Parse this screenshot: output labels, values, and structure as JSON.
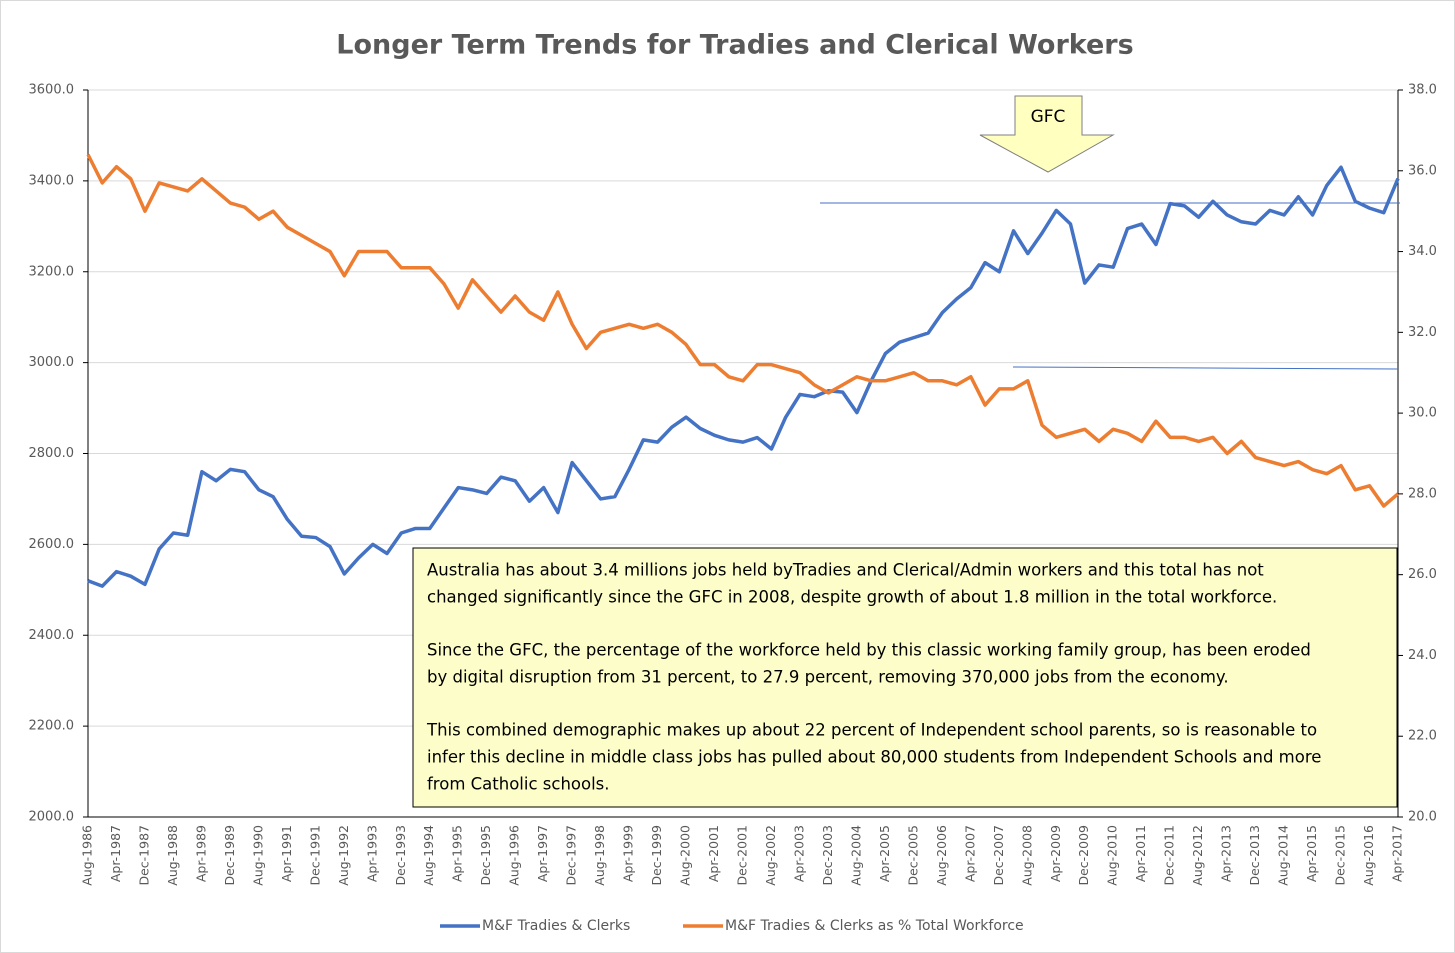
{
  "chart_data": {
    "type": "line",
    "title": "Longer Term Trends for Tradies and Clerical Workers",
    "categories": [
      "Aug-1986",
      null,
      "Apr-1987",
      null,
      "Dec-1987",
      null,
      "Aug-1988",
      null,
      "Apr-1989",
      null,
      "Dec-1989",
      null,
      "Aug-1990",
      null,
      "Apr-1991",
      null,
      "Dec-1991",
      null,
      "Aug-1992",
      null,
      "Apr-1993",
      null,
      "Dec-1993",
      null,
      "Aug-1994",
      null,
      "Apr-1995",
      null,
      "Dec-1995",
      null,
      "Aug-1996",
      null,
      "Apr-1997",
      null,
      "Dec-1997",
      null,
      "Aug-1998",
      null,
      "Apr-1999",
      null,
      "Dec-1999",
      null,
      "Aug-2000",
      null,
      "Apr-2001",
      null,
      "Dec-2001",
      null,
      "Aug-2002",
      null,
      "Apr-2003",
      null,
      "Dec-2003",
      null,
      "Aug-2004",
      null,
      "Apr-2005",
      null,
      "Dec-2005",
      null,
      "Aug-2006",
      null,
      "Apr-2007",
      null,
      "Dec-2007",
      null,
      "Aug-2008",
      null,
      "Apr-2009",
      null,
      "Dec-2009",
      null,
      "Aug-2010",
      null,
      "Apr-2011",
      null,
      "Dec-2011",
      null,
      "Aug-2012",
      null,
      "Apr-2013",
      null,
      "Dec-2013",
      null,
      "Aug-2014",
      null,
      "Apr-2015",
      null,
      "Dec-2015",
      null,
      "Aug-2016",
      null,
      "Apr-2017"
    ],
    "series": [
      {
        "name": "M&F Tradies & Clerks",
        "color": "#4472c4",
        "values": [
          2520,
          2508,
          2540,
          2530,
          2512,
          2590,
          2625,
          2620,
          2760,
          2740,
          2765,
          2760,
          2720,
          2705,
          2655,
          2618,
          2615,
          2595,
          2535,
          2570,
          2600,
          2580,
          2625,
          2635,
          2635,
          2680,
          2725,
          2720,
          2712,
          2748,
          2740,
          2695,
          2725,
          2670,
          2780,
          2740,
          2700,
          2705,
          2765,
          2830,
          2825,
          2858,
          2880,
          2855,
          2840,
          2830,
          2825,
          2835,
          2810,
          2880,
          2930,
          2925,
          2938,
          2935,
          2890,
          2960,
          3020,
          3045,
          3055,
          3065,
          3110,
          3140,
          3165,
          3220,
          3200,
          3290,
          3240,
          3285,
          3335,
          3305,
          3175,
          3215,
          3210,
          3295,
          3305,
          3260,
          3350,
          3345,
          3320,
          3355,
          3325,
          3310,
          3305,
          3335,
          3325,
          3365,
          3325,
          3390,
          3430,
          3355,
          3340,
          3330,
          3405
        ]
      },
      {
        "name": "M&F Tradies & Clerks as % Total Workforce",
        "color": "#ed7d31",
        "axis": "y2",
        "values": [
          36.4,
          35.7,
          36.1,
          35.8,
          35.0,
          35.7,
          35.6,
          35.5,
          35.8,
          35.5,
          35.2,
          35.1,
          34.8,
          35.0,
          34.6,
          34.4,
          34.2,
          34.0,
          33.4,
          34.0,
          34.0,
          34.0,
          33.6,
          33.6,
          33.6,
          33.2,
          32.6,
          33.3,
          32.9,
          32.5,
          32.9,
          32.5,
          32.3,
          33.0,
          32.2,
          31.6,
          32.0,
          32.1,
          32.2,
          32.1,
          32.2,
          32.0,
          31.7,
          31.2,
          31.2,
          30.9,
          30.8,
          31.2,
          31.2,
          31.1,
          31.0,
          30.7,
          30.5,
          30.7,
          30.9,
          30.8,
          30.8,
          30.9,
          31.0,
          30.8,
          30.8,
          30.7,
          30.9,
          30.2,
          30.6,
          30.6,
          30.8,
          29.7,
          29.4,
          29.5,
          29.6,
          29.3,
          29.6,
          29.5,
          29.3,
          29.8,
          29.4,
          29.4,
          29.3,
          29.4,
          29.0,
          29.3,
          28.9,
          28.8,
          28.7,
          28.8,
          28.6,
          28.5,
          28.7,
          28.1,
          28.2,
          27.7,
          28.0
        ]
      }
    ],
    "ylim": [
      2000,
      3600
    ],
    "yticks": [
      {
        "value": 2000,
        "label": "2000.0"
      },
      {
        "value": 2200,
        "label": "2200.0"
      },
      {
        "value": 2400,
        "label": "2400.0"
      },
      {
        "value": 2600,
        "label": "2600.0"
      },
      {
        "value": 2800,
        "label": "2800.0"
      },
      {
        "value": 3000,
        "label": "3000.0"
      },
      {
        "value": 3200,
        "label": "3200.0"
      },
      {
        "value": 3400,
        "label": "3400.0"
      },
      {
        "value": 3600,
        "label": "3600.0"
      }
    ],
    "y2lim": [
      20,
      38
    ],
    "y2ticks": [
      {
        "value": 20,
        "label": "20.0"
      },
      {
        "value": 22,
        "label": "22.0"
      },
      {
        "value": 24,
        "label": "24.0"
      },
      {
        "value": 26,
        "label": "26.0"
      },
      {
        "value": 28,
        "label": "28.0"
      },
      {
        "value": 30,
        "label": "30.0"
      },
      {
        "value": 32,
        "label": "32.0"
      },
      {
        "value": 34,
        "label": "34.0"
      },
      {
        "value": 36,
        "label": "36.0"
      },
      {
        "value": 38,
        "label": "38.0"
      }
    ],
    "grid": true,
    "legend": "bottom",
    "arrow_label": "GFC",
    "note": [
      [
        "Australia has about 3.4 millions jobs held byTradies and Clerical/Admin workers and this total has not",
        "changed significantly since the GFC in 2008, despite growth of about 1.8 million in the total workforce."
      ],
      [
        "Since the GFC, the percentage of the workforce held by this classic working family group, has been eroded",
        "by digital disruption from 31 percent, to 27.9 percent, removing 370,000 jobs from the economy."
      ],
      [
        "This combined demographic makes up about 22 percent of Independent school parents, so is reasonable to",
        "infer this decline in middle class jobs has pulled about 80,000 students from Independent Schools and more",
        "from Catholic schools."
      ]
    ]
  }
}
